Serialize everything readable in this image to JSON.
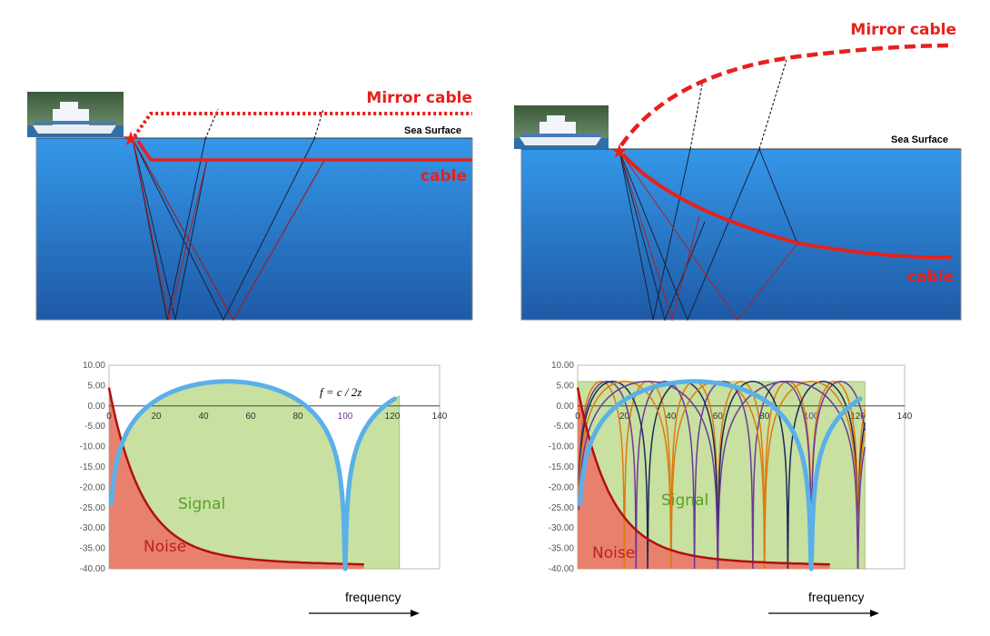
{
  "left_diagram": {
    "mirror_label": "Mirror cable",
    "cable_label": "cable",
    "surface_label": "Sea Surface"
  },
  "right_diagram": {
    "mirror_label": "Mirror cable",
    "cable_label": "cable",
    "surface_label": "Sea Surface"
  },
  "colors": {
    "water_top": "#2f8fe0",
    "water_bottom": "#1f5fa8",
    "cable": "#e8201c",
    "signal_fill": "#c8e0a0",
    "noise_fill": "#e8806e",
    "response_curve": "#5ab0e8",
    "noise_curve": "#b0100e"
  },
  "icons": [
    "ship-photo",
    "source-star-icon",
    "arrow-right-icon"
  ],
  "chart_data": [
    {
      "type": "line",
      "xlim": [
        0,
        140
      ],
      "ylim": [
        -40,
        10
      ],
      "x_ticks": [
        0,
        20,
        40,
        60,
        80,
        100,
        120,
        140
      ],
      "y_ticks": [
        10,
        5,
        0,
        -5,
        -10,
        -15,
        -20,
        -25,
        -30,
        -35,
        -40
      ],
      "x_highlight": 100,
      "annotation": "f = c / 2z",
      "signal_label": "Signal",
      "noise_label": "Noise",
      "xlabel": "frequency",
      "series": [
        {
          "notch_hz": 100,
          "style": "thick",
          "color": "#5ab0e8"
        }
      ]
    },
    {
      "type": "line",
      "xlim": [
        0,
        140
      ],
      "ylim": [
        -40,
        10
      ],
      "x_ticks": [
        0,
        20,
        40,
        60,
        80,
        100,
        120,
        140
      ],
      "y_ticks": [
        10,
        5,
        0,
        -5,
        -10,
        -15,
        -20,
        -25,
        -30,
        -35,
        -40
      ],
      "x_highlight": 100,
      "signal_label": "Signal",
      "noise_label": "Noise",
      "xlabel": "frequency",
      "series": [
        {
          "notch_hz": 100,
          "style": "thick",
          "color": "#5ab0e8"
        },
        {
          "notch_hz": 20,
          "style": "thin",
          "color": "#e07a10"
        },
        {
          "notch_hz": 25,
          "style": "thin",
          "color": "#6a3a9a"
        },
        {
          "notch_hz": 30,
          "style": "thin",
          "color": "#1a2a5a"
        },
        {
          "notch_hz": 40,
          "style": "thin",
          "color": "#e07a10"
        },
        {
          "notch_hz": 60,
          "style": "thin",
          "color": "#6a3a9a"
        }
      ]
    }
  ]
}
